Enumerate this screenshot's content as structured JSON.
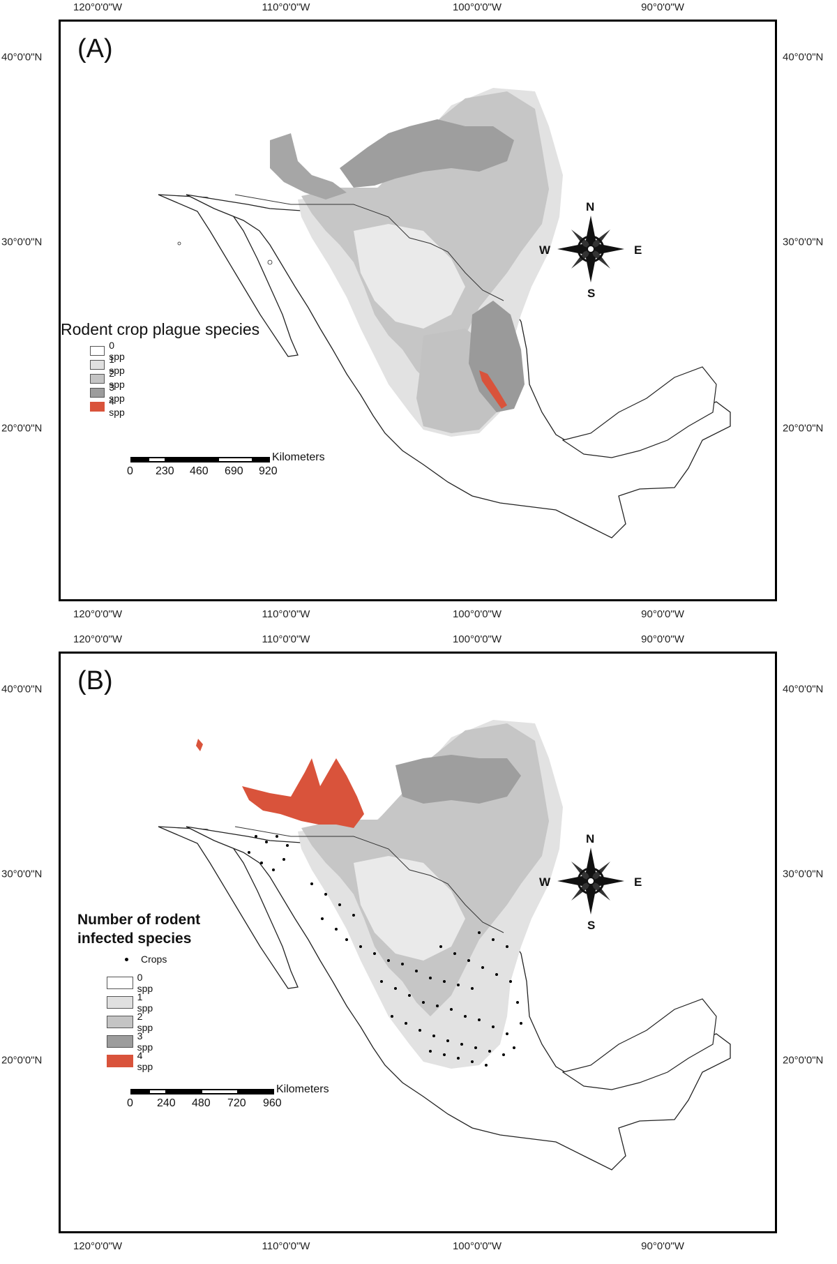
{
  "panels": [
    {
      "label": "(A)",
      "legend_title": "Rodent crop plague species",
      "crops_label": "",
      "classes": [
        {
          "label": "0 spp",
          "color": "#ffffff"
        },
        {
          "label": "1 spp",
          "color": "#e0e0e0"
        },
        {
          "label": "2 spp",
          "color": "#c4c4c4"
        },
        {
          "label": "3 spp",
          "color": "#9c9c9c"
        },
        {
          "label": "4 spp",
          "color": "#d9533b"
        }
      ],
      "scale_unit": "Kilometers",
      "scale_ticks": [
        "0",
        "230",
        "460",
        "690",
        "920"
      ]
    },
    {
      "label": "(B)",
      "legend_title_line1": "Number of rodent",
      "legend_title_line2": "infected species",
      "crops_label": "Crops",
      "classes": [
        {
          "label": "0 spp",
          "color": "#ffffff"
        },
        {
          "label": "1 spp",
          "color": "#e0e0e0"
        },
        {
          "label": "2 spp",
          "color": "#c4c4c4"
        },
        {
          "label": "3 spp",
          "color": "#9c9c9c"
        },
        {
          "label": "4 spp",
          "color": "#d9533b"
        }
      ],
      "scale_unit": "Kilometers",
      "scale_ticks": [
        "0",
        "240",
        "480",
        "720",
        "960"
      ]
    }
  ],
  "longitudes": [
    "120°0'0\"W",
    "110°0'0\"W",
    "100°0'0\"W",
    "90°0'0\"W"
  ],
  "latitudes": [
    "40°0'0\"N",
    "30°0'0\"N",
    "20°0'0\"N"
  ],
  "compass": {
    "n": "N",
    "s": "S",
    "e": "E",
    "w": "W"
  }
}
